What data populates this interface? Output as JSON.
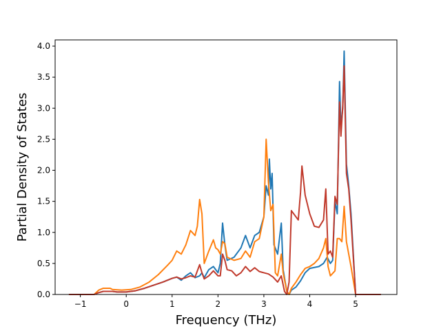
{
  "chart_data": {
    "type": "line",
    "title": "",
    "xlabel": "Frequency (THz)",
    "ylabel": "Partial Density of States",
    "xlim": [
      -1.55,
      5.9
    ],
    "ylim": [
      0.0,
      4.1
    ],
    "xticks": [
      -1,
      0,
      1,
      2,
      3,
      4,
      5
    ],
    "xtick_labels": [
      "−1",
      "0",
      "1",
      "2",
      "3",
      "4",
      "5"
    ],
    "yticks": [
      0.0,
      0.5,
      1.0,
      1.5,
      2.0,
      2.5,
      3.0,
      3.5,
      4.0
    ],
    "ytick_labels": [
      "0.0",
      "0.5",
      "1.0",
      "1.5",
      "2.0",
      "2.5",
      "3.0",
      "3.5",
      "4.0"
    ],
    "grid": false,
    "legend": "none",
    "series": [
      {
        "color": "#1f77b4",
        "points": [
          [
            -1.25,
            0
          ],
          [
            -0.7,
            0
          ],
          [
            -0.6,
            0.03
          ],
          [
            -0.5,
            0.05
          ],
          [
            -0.3,
            0.05
          ],
          [
            -0.2,
            0.04
          ],
          [
            0,
            0.04
          ],
          [
            0.2,
            0.06
          ],
          [
            0.4,
            0.1
          ],
          [
            0.6,
            0.15
          ],
          [
            0.8,
            0.2
          ],
          [
            1.0,
            0.26
          ],
          [
            1.1,
            0.28
          ],
          [
            1.2,
            0.23
          ],
          [
            1.3,
            0.3
          ],
          [
            1.4,
            0.35
          ],
          [
            1.5,
            0.27
          ],
          [
            1.6,
            0.3
          ],
          [
            1.65,
            0.35
          ],
          [
            1.7,
            0.27
          ],
          [
            1.8,
            0.4
          ],
          [
            1.9,
            0.45
          ],
          [
            2.0,
            0.35
          ],
          [
            2.05,
            0.5
          ],
          [
            2.1,
            1.15
          ],
          [
            2.15,
            0.8
          ],
          [
            2.2,
            0.55
          ],
          [
            2.35,
            0.6
          ],
          [
            2.5,
            0.75
          ],
          [
            2.6,
            0.95
          ],
          [
            2.7,
            0.75
          ],
          [
            2.8,
            0.95
          ],
          [
            2.9,
            1.0
          ],
          [
            3.0,
            1.25
          ],
          [
            3.05,
            1.75
          ],
          [
            3.1,
            1.6
          ],
          [
            3.12,
            2.18
          ],
          [
            3.15,
            1.7
          ],
          [
            3.18,
            1.95
          ],
          [
            3.22,
            0.8
          ],
          [
            3.3,
            0.65
          ],
          [
            3.38,
            1.15
          ],
          [
            3.42,
            0.4
          ],
          [
            3.5,
            0.05
          ],
          [
            3.55,
            0.0
          ],
          [
            3.6,
            0.07
          ],
          [
            3.7,
            0.12
          ],
          [
            3.8,
            0.22
          ],
          [
            3.9,
            0.35
          ],
          [
            4.0,
            0.42
          ],
          [
            4.2,
            0.45
          ],
          [
            4.3,
            0.5
          ],
          [
            4.38,
            0.6
          ],
          [
            4.45,
            0.5
          ],
          [
            4.5,
            0.55
          ],
          [
            4.55,
            1.5
          ],
          [
            4.6,
            1.3
          ],
          [
            4.65,
            3.43
          ],
          [
            4.68,
            2.7
          ],
          [
            4.72,
            3.0
          ],
          [
            4.75,
            3.92
          ],
          [
            4.8,
            2.1
          ],
          [
            4.85,
            1.75
          ],
          [
            4.9,
            1.3
          ],
          [
            5.0,
            0.0
          ],
          [
            5.55,
            0.0
          ]
        ]
      },
      {
        "color": "#ff7f0e",
        "points": [
          [
            -1.25,
            0
          ],
          [
            -0.7,
            0
          ],
          [
            -0.6,
            0.07
          ],
          [
            -0.5,
            0.1
          ],
          [
            -0.35,
            0.1
          ],
          [
            -0.3,
            0.08
          ],
          [
            -0.1,
            0.07
          ],
          [
            0.1,
            0.08
          ],
          [
            0.3,
            0.12
          ],
          [
            0.5,
            0.2
          ],
          [
            0.7,
            0.32
          ],
          [
            0.9,
            0.47
          ],
          [
            1.0,
            0.55
          ],
          [
            1.1,
            0.7
          ],
          [
            1.2,
            0.65
          ],
          [
            1.3,
            0.8
          ],
          [
            1.4,
            1.03
          ],
          [
            1.5,
            0.95
          ],
          [
            1.55,
            1.1
          ],
          [
            1.6,
            1.53
          ],
          [
            1.65,
            1.3
          ],
          [
            1.7,
            0.5
          ],
          [
            1.8,
            0.7
          ],
          [
            1.9,
            0.88
          ],
          [
            1.95,
            0.75
          ],
          [
            2.0,
            0.72
          ],
          [
            2.05,
            0.65
          ],
          [
            2.1,
            0.85
          ],
          [
            2.15,
            0.82
          ],
          [
            2.2,
            0.6
          ],
          [
            2.35,
            0.55
          ],
          [
            2.5,
            0.58
          ],
          [
            2.6,
            0.7
          ],
          [
            2.7,
            0.6
          ],
          [
            2.8,
            0.85
          ],
          [
            2.9,
            0.9
          ],
          [
            3.0,
            1.25
          ],
          [
            3.05,
            2.5
          ],
          [
            3.1,
            1.8
          ],
          [
            3.15,
            1.35
          ],
          [
            3.2,
            1.45
          ],
          [
            3.25,
            0.35
          ],
          [
            3.3,
            0.3
          ],
          [
            3.38,
            0.65
          ],
          [
            3.42,
            0.35
          ],
          [
            3.5,
            0.05
          ],
          [
            3.55,
            0.0
          ],
          [
            3.6,
            0.1
          ],
          [
            3.7,
            0.2
          ],
          [
            3.8,
            0.32
          ],
          [
            3.9,
            0.42
          ],
          [
            4.0,
            0.45
          ],
          [
            4.1,
            0.5
          ],
          [
            4.2,
            0.58
          ],
          [
            4.3,
            0.75
          ],
          [
            4.35,
            0.9
          ],
          [
            4.4,
            0.45
          ],
          [
            4.45,
            0.3
          ],
          [
            4.55,
            0.38
          ],
          [
            4.6,
            0.9
          ],
          [
            4.65,
            0.9
          ],
          [
            4.7,
            0.85
          ],
          [
            4.75,
            1.42
          ],
          [
            4.8,
            0.85
          ],
          [
            4.9,
            0.45
          ],
          [
            5.0,
            0.0
          ],
          [
            5.55,
            0.0
          ]
        ]
      },
      {
        "color": "#c0392b",
        "points": [
          [
            -1.25,
            0
          ],
          [
            -0.7,
            0
          ],
          [
            -0.6,
            0.03
          ],
          [
            -0.5,
            0.05
          ],
          [
            -0.3,
            0.05
          ],
          [
            -0.2,
            0.04
          ],
          [
            0,
            0.04
          ],
          [
            0.2,
            0.06
          ],
          [
            0.4,
            0.1
          ],
          [
            0.6,
            0.15
          ],
          [
            0.8,
            0.2
          ],
          [
            1.0,
            0.26
          ],
          [
            1.1,
            0.28
          ],
          [
            1.2,
            0.25
          ],
          [
            1.3,
            0.27
          ],
          [
            1.4,
            0.3
          ],
          [
            1.5,
            0.28
          ],
          [
            1.6,
            0.48
          ],
          [
            1.65,
            0.35
          ],
          [
            1.7,
            0.25
          ],
          [
            1.8,
            0.3
          ],
          [
            1.9,
            0.38
          ],
          [
            2.0,
            0.3
          ],
          [
            2.05,
            0.3
          ],
          [
            2.1,
            0.65
          ],
          [
            2.15,
            0.55
          ],
          [
            2.2,
            0.4
          ],
          [
            2.3,
            0.38
          ],
          [
            2.4,
            0.3
          ],
          [
            2.5,
            0.35
          ],
          [
            2.6,
            0.45
          ],
          [
            2.7,
            0.37
          ],
          [
            2.8,
            0.43
          ],
          [
            2.9,
            0.37
          ],
          [
            3.0,
            0.35
          ],
          [
            3.1,
            0.33
          ],
          [
            3.2,
            0.28
          ],
          [
            3.3,
            0.2
          ],
          [
            3.38,
            0.3
          ],
          [
            3.45,
            0.05
          ],
          [
            3.5,
            0.0
          ],
          [
            3.55,
            0.2
          ],
          [
            3.6,
            1.35
          ],
          [
            3.7,
            1.25
          ],
          [
            3.75,
            1.2
          ],
          [
            3.8,
            1.65
          ],
          [
            3.83,
            2.07
          ],
          [
            3.9,
            1.6
          ],
          [
            4.0,
            1.3
          ],
          [
            4.1,
            1.1
          ],
          [
            4.2,
            1.08
          ],
          [
            4.3,
            1.2
          ],
          [
            4.35,
            1.7
          ],
          [
            4.4,
            0.65
          ],
          [
            4.45,
            0.7
          ],
          [
            4.5,
            0.6
          ],
          [
            4.55,
            1.58
          ],
          [
            4.6,
            1.45
          ],
          [
            4.65,
            3.1
          ],
          [
            4.68,
            2.55
          ],
          [
            4.72,
            3.05
          ],
          [
            4.75,
            3.68
          ],
          [
            4.8,
            1.95
          ],
          [
            4.85,
            1.7
          ],
          [
            4.9,
            1.2
          ],
          [
            5.0,
            0.0
          ],
          [
            5.55,
            0.0
          ]
        ]
      }
    ]
  }
}
